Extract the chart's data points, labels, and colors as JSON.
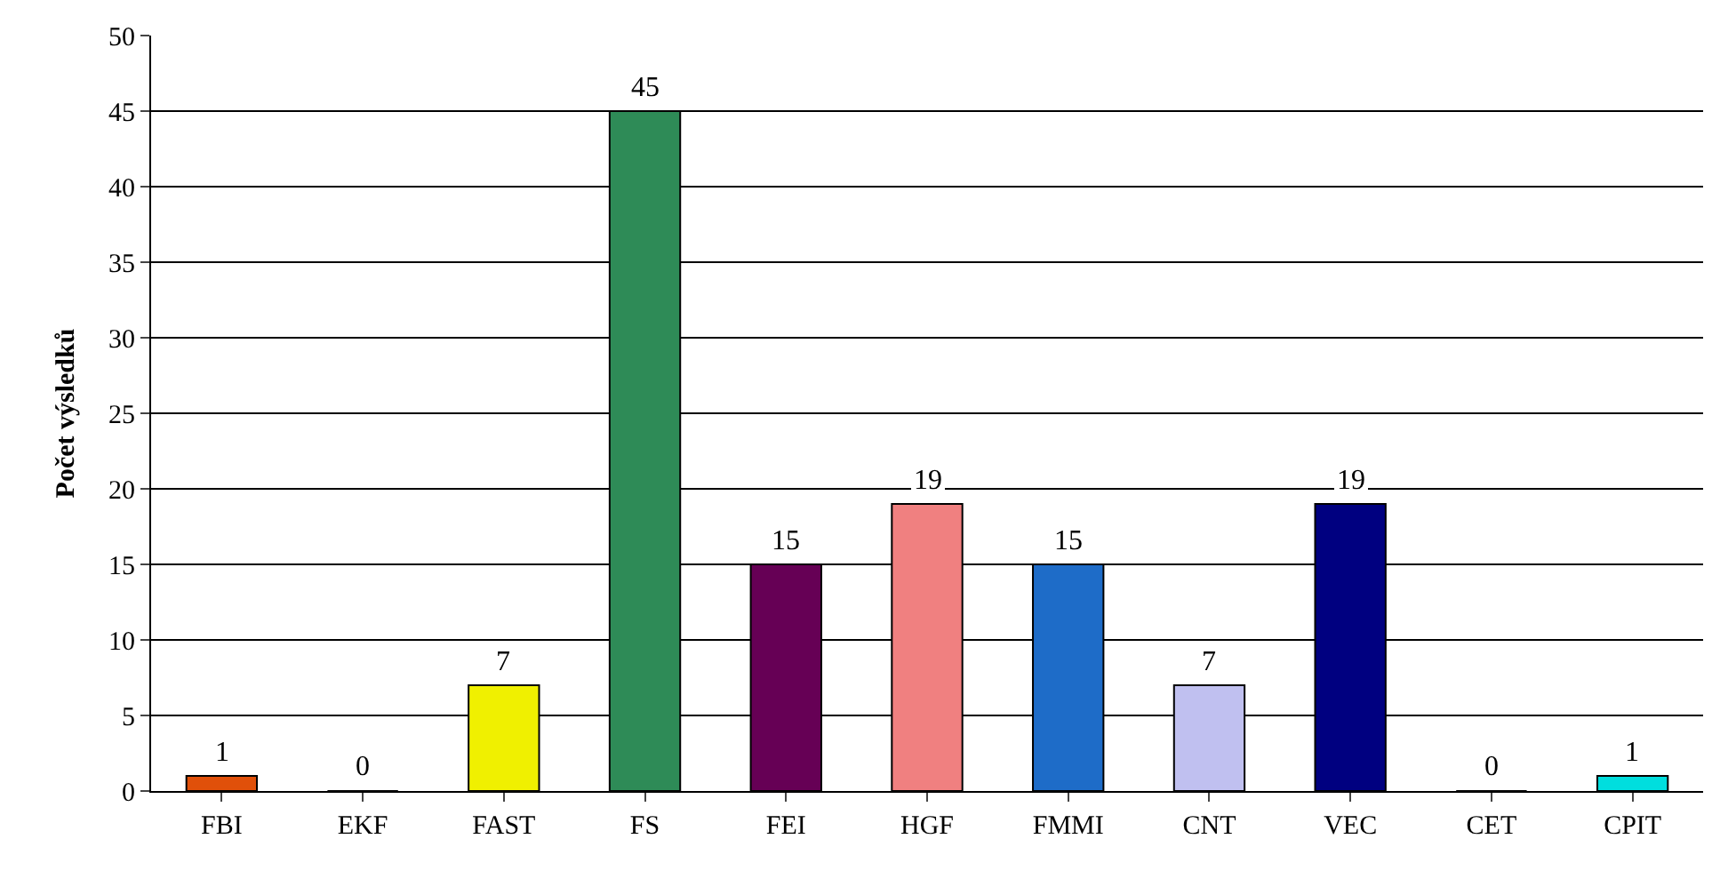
{
  "chart_data": {
    "type": "bar",
    "ylabel": "Počet výsledků",
    "categories": [
      "FBI",
      "EKF",
      "FAST",
      "FS",
      "FEI",
      "HGF",
      "FMMI",
      "CNT",
      "VEC",
      "CET",
      "CPIT"
    ],
    "values": [
      1,
      0,
      7,
      45,
      15,
      19,
      15,
      7,
      19,
      0,
      1
    ],
    "colors": [
      "#e0500a",
      "#000000",
      "#f0f000",
      "#2e8b57",
      "#660055",
      "#f08080",
      "#1e6cc8",
      "#c0c0f0",
      "#000080",
      "#000000",
      "#00dede"
    ],
    "ylim": [
      0,
      50
    ],
    "yticks": [
      0,
      5,
      10,
      15,
      20,
      25,
      30,
      35,
      40,
      45,
      50
    ],
    "grid": "y",
    "data_labels": true
  }
}
